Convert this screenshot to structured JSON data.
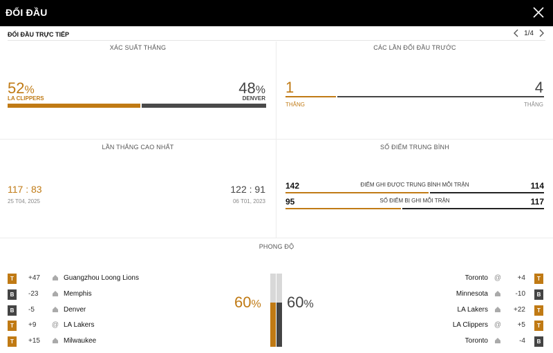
{
  "header": {
    "title": "ĐỐI ĐẦU"
  },
  "subheader": {
    "title": "ĐỐI ĐẦU TRỰC TIẾP",
    "pager": "1/4"
  },
  "win_probability": {
    "title": "XÁC SUẤT THẮNG",
    "home": {
      "value": "52",
      "symbol": "%",
      "team": "LA CLIPPERS",
      "fraction": 0.52
    },
    "away": {
      "value": "48",
      "symbol": "%",
      "team": "DENVER",
      "fraction": 0.48
    }
  },
  "previous_meetings": {
    "title": "CÁC LẦN ĐỐI ĐẦU TRƯỚC",
    "home": {
      "value": "1",
      "label": "THẮNG"
    },
    "away": {
      "value": "4",
      "label": "THẮNG"
    },
    "home_fraction": 0.2
  },
  "biggest_win": {
    "title": "LẦN THẮNG CAO NHẤT",
    "home": {
      "score": "117 : 83",
      "date": "25 T04, 2025"
    },
    "away": {
      "score": "122 : 91",
      "date": "06 T01, 2023"
    }
  },
  "average_points": {
    "title": "SỐ ĐIỂM TRUNG BÌNH",
    "rows": [
      {
        "label": "ĐIỂM GHI ĐƯỢC TRUNG BÌNH MỖI TRẬN",
        "home": "142",
        "away": "114",
        "home_fraction": 0.555
      },
      {
        "label": "SỐ ĐIỂM BỊ GHI MỖI TRẬN",
        "home": "95",
        "away": "117",
        "home_fraction": 0.448
      }
    ]
  },
  "form": {
    "title": "PHONG ĐỘ",
    "home_pct": {
      "value": "60",
      "symbol": "%",
      "fraction": 0.6
    },
    "away_pct": {
      "value": "60",
      "symbol": "%",
      "fraction": 0.6
    },
    "home_games": [
      {
        "result": "T",
        "diff": "+47",
        "venue": "home",
        "opponent": "Guangzhou Loong Lions"
      },
      {
        "result": "B",
        "diff": "-23",
        "venue": "home",
        "opponent": "Memphis"
      },
      {
        "result": "B",
        "diff": "-5",
        "venue": "home",
        "opponent": "Denver"
      },
      {
        "result": "T",
        "diff": "+9",
        "venue": "@",
        "opponent": "LA Lakers"
      },
      {
        "result": "T",
        "diff": "+15",
        "venue": "home",
        "opponent": "Milwaukee"
      }
    ],
    "away_games": [
      {
        "result": "T",
        "diff": "+4",
        "venue": "@",
        "opponent": "Toronto"
      },
      {
        "result": "B",
        "diff": "-10",
        "venue": "home",
        "opponent": "Minnesota"
      },
      {
        "result": "T",
        "diff": "+22",
        "venue": "home",
        "opponent": "LA Lakers"
      },
      {
        "result": "T",
        "diff": "+5",
        "venue": "@",
        "opponent": "LA Clippers"
      },
      {
        "result": "B",
        "diff": "-4",
        "venue": "home",
        "opponent": "Toronto"
      }
    ]
  },
  "colors": {
    "accent": "#c07a14",
    "dark": "#444444"
  }
}
